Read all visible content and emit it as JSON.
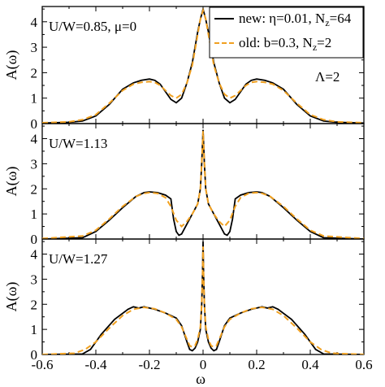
{
  "chart_data": {
    "type": "line",
    "shared": {
      "xlabel": "ω",
      "ylabel": "A(ω)",
      "xlim": [
        -0.6,
        0.6
      ],
      "ylim": [
        0,
        4.6
      ],
      "xticks": [
        -0.6,
        -0.4,
        -0.2,
        0,
        0.2,
        0.4,
        0.6
      ],
      "xtick_labels": [
        "-0.6",
        "-0.4",
        "-0.2",
        "0",
        "0.2",
        "0.4",
        "0.6"
      ],
      "yticks": [
        0,
        1,
        2,
        3,
        4
      ],
      "ytick_labels": [
        "0",
        "1",
        "2",
        "3",
        "4"
      ],
      "legend": {
        "placement": "top-right",
        "entries": [
          "new: η=0.01, N",
          "old: b=0.3, N"
        ],
        "subscripts": [
          "z",
          "z"
        ],
        "suffixes": [
          "=64",
          "=2"
        ]
      },
      "colors": {
        "new": "#000000",
        "old": "#f0a020"
      }
    },
    "panels": [
      {
        "annotation": "U/W=0.85, μ=0",
        "extra_annotation": "Λ=2",
        "series": [
          {
            "name": "new",
            "x": [
              -0.6,
              -0.5,
              -0.45,
              -0.4,
              -0.35,
              -0.3,
              -0.26,
              -0.23,
              -0.2,
              -0.18,
              -0.16,
              -0.14,
              -0.12,
              -0.1,
              -0.08,
              -0.06,
              -0.04,
              -0.02,
              -0.01,
              0,
              0.01,
              0.02,
              0.04,
              0.06,
              0.08,
              0.1,
              0.12,
              0.14,
              0.16,
              0.18,
              0.2,
              0.23,
              0.26,
              0.3,
              0.35,
              0.4,
              0.45,
              0.5,
              0.6
            ],
            "y": [
              0.02,
              0.05,
              0.1,
              0.3,
              0.75,
              1.35,
              1.6,
              1.7,
              1.75,
              1.7,
              1.55,
              1.25,
              0.95,
              0.82,
              1.0,
              1.6,
              2.4,
              3.6,
              4.1,
              4.5,
              4.1,
              3.6,
              2.4,
              1.6,
              1.0,
              0.82,
              0.95,
              1.25,
              1.55,
              1.7,
              1.75,
              1.7,
              1.6,
              1.35,
              0.75,
              0.3,
              0.1,
              0.05,
              0.02
            ]
          },
          {
            "name": "old",
            "x": [
              -0.6,
              -0.5,
              -0.45,
              -0.4,
              -0.35,
              -0.3,
              -0.26,
              -0.23,
              -0.2,
              -0.18,
              -0.16,
              -0.14,
              -0.12,
              -0.1,
              -0.08,
              -0.06,
              -0.04,
              -0.02,
              -0.01,
              0,
              0.01,
              0.02,
              0.04,
              0.06,
              0.08,
              0.1,
              0.12,
              0.14,
              0.16,
              0.18,
              0.2,
              0.23,
              0.26,
              0.3,
              0.35,
              0.4,
              0.45,
              0.5,
              0.6
            ],
            "y": [
              0.03,
              0.07,
              0.15,
              0.35,
              0.8,
              1.3,
              1.55,
              1.62,
              1.65,
              1.62,
              1.5,
              1.3,
              1.1,
              1.0,
              1.15,
              1.6,
              2.3,
              3.5,
              4.1,
              4.45,
              4.1,
              3.5,
              2.3,
              1.6,
              1.15,
              1.0,
              1.1,
              1.3,
              1.5,
              1.62,
              1.65,
              1.62,
              1.55,
              1.3,
              0.8,
              0.35,
              0.15,
              0.07,
              0.03
            ]
          }
        ]
      },
      {
        "annotation": "U/W=1.13",
        "series": [
          {
            "name": "new",
            "x": [
              -0.6,
              -0.45,
              -0.4,
              -0.35,
              -0.3,
              -0.25,
              -0.22,
              -0.2,
              -0.17,
              -0.14,
              -0.12,
              -0.11,
              -0.1,
              -0.09,
              -0.08,
              -0.06,
              -0.04,
              -0.02,
              -0.01,
              -0.005,
              0,
              0.005,
              0.01,
              0.02,
              0.04,
              0.06,
              0.08,
              0.09,
              0.1,
              0.11,
              0.12,
              0.14,
              0.17,
              0.2,
              0.22,
              0.25,
              0.3,
              0.35,
              0.4,
              0.45,
              0.6
            ],
            "y": [
              0.0,
              0.05,
              0.3,
              0.75,
              1.25,
              1.7,
              1.85,
              1.88,
              1.85,
              1.75,
              1.6,
              0.8,
              0.3,
              0.15,
              0.2,
              0.6,
              1.0,
              1.4,
              2.0,
              3.0,
              4.35,
              3.0,
              2.0,
              1.4,
              1.0,
              0.6,
              0.2,
              0.15,
              0.3,
              0.8,
              1.6,
              1.75,
              1.85,
              1.88,
              1.85,
              1.7,
              1.25,
              0.75,
              0.3,
              0.05,
              0.0
            ]
          },
          {
            "name": "old",
            "x": [
              -0.6,
              -0.45,
              -0.4,
              -0.35,
              -0.3,
              -0.25,
              -0.22,
              -0.2,
              -0.17,
              -0.14,
              -0.12,
              -0.1,
              -0.08,
              -0.06,
              -0.04,
              -0.02,
              -0.01,
              -0.005,
              0,
              0.005,
              0.01,
              0.02,
              0.04,
              0.06,
              0.08,
              0.1,
              0.12,
              0.14,
              0.17,
              0.2,
              0.22,
              0.25,
              0.3,
              0.35,
              0.4,
              0.45,
              0.6
            ],
            "y": [
              0.02,
              0.12,
              0.35,
              0.8,
              1.3,
              1.7,
              1.82,
              1.85,
              1.82,
              1.65,
              1.3,
              0.75,
              0.5,
              0.7,
              1.0,
              1.4,
              2.0,
              3.0,
              4.3,
              3.0,
              2.0,
              1.4,
              1.0,
              0.7,
              0.5,
              0.75,
              1.3,
              1.65,
              1.82,
              1.85,
              1.82,
              1.7,
              1.3,
              0.8,
              0.35,
              0.12,
              0.02
            ]
          }
        ]
      },
      {
        "annotation": "U/W=1.27",
        "series": [
          {
            "name": "new",
            "x": [
              -0.6,
              -0.45,
              -0.42,
              -0.38,
              -0.33,
              -0.28,
              -0.26,
              -0.24,
              -0.22,
              -0.18,
              -0.14,
              -0.1,
              -0.08,
              -0.06,
              -0.05,
              -0.04,
              -0.03,
              -0.02,
              -0.01,
              -0.005,
              -0.002,
              0,
              0.002,
              0.005,
              0.01,
              0.02,
              0.03,
              0.04,
              0.05,
              0.06,
              0.08,
              0.1,
              0.14,
              0.18,
              0.22,
              0.24,
              0.26,
              0.28,
              0.33,
              0.38,
              0.42,
              0.45,
              0.6
            ],
            "y": [
              0.0,
              0.02,
              0.2,
              0.8,
              1.4,
              1.8,
              1.9,
              1.85,
              1.9,
              1.8,
              1.65,
              1.45,
              1.15,
              0.5,
              0.2,
              0.15,
              0.25,
              0.5,
              1.0,
              2.0,
              3.2,
              4.5,
              3.2,
              2.0,
              1.0,
              0.5,
              0.25,
              0.15,
              0.2,
              0.5,
              1.15,
              1.45,
              1.65,
              1.8,
              1.9,
              1.85,
              1.9,
              1.8,
              1.4,
              0.8,
              0.2,
              0.02,
              0.0
            ]
          },
          {
            "name": "old",
            "x": [
              -0.6,
              -0.48,
              -0.44,
              -0.4,
              -0.35,
              -0.3,
              -0.26,
              -0.22,
              -0.18,
              -0.14,
              -0.1,
              -0.08,
              -0.06,
              -0.05,
              -0.04,
              -0.03,
              -0.02,
              -0.01,
              -0.005,
              -0.002,
              0,
              0.002,
              0.005,
              0.01,
              0.02,
              0.03,
              0.04,
              0.05,
              0.06,
              0.08,
              0.1,
              0.14,
              0.18,
              0.22,
              0.26,
              0.3,
              0.35,
              0.4,
              0.44,
              0.48,
              0.6
            ],
            "y": [
              0.0,
              0.05,
              0.2,
              0.5,
              1.05,
              1.55,
              1.8,
              1.88,
              1.82,
              1.65,
              1.4,
              1.1,
              0.6,
              0.35,
              0.3,
              0.35,
              0.6,
              1.1,
              2.0,
              3.1,
              4.3,
              3.1,
              2.0,
              1.1,
              0.6,
              0.35,
              0.3,
              0.35,
              0.6,
              1.1,
              1.4,
              1.65,
              1.82,
              1.88,
              1.8,
              1.55,
              1.05,
              0.5,
              0.2,
              0.05,
              0.0
            ]
          }
        ]
      }
    ]
  }
}
